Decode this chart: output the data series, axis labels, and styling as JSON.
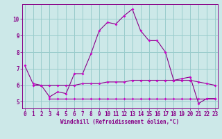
{
  "xlabel": "Windchill (Refroidissement éolien,°C)",
  "bg_color": "#cce8e8",
  "grid_color": "#99cccc",
  "line_color": "#880088",
  "marker_color": "#cc00cc",
  "x_ticks": [
    0,
    1,
    2,
    3,
    4,
    5,
    6,
    7,
    8,
    9,
    10,
    11,
    12,
    13,
    14,
    15,
    16,
    17,
    18,
    19,
    20,
    21,
    22,
    23
  ],
  "y_ticks": [
    5,
    6,
    7,
    8,
    9,
    10
  ],
  "xlim": [
    -0.3,
    23.3
  ],
  "ylim": [
    4.6,
    10.9
  ],
  "line1_x": [
    0,
    1,
    2,
    3,
    4,
    5,
    6,
    7,
    8,
    9,
    10,
    11,
    12,
    13,
    14,
    15,
    16,
    17,
    18,
    19,
    20,
    21,
    22,
    23
  ],
  "line1_y": [
    7.2,
    6.1,
    6.0,
    5.3,
    5.6,
    5.5,
    6.7,
    6.7,
    7.9,
    9.3,
    9.8,
    9.7,
    10.2,
    10.6,
    9.3,
    8.7,
    8.7,
    8.0,
    6.3,
    6.4,
    6.5,
    4.9,
    5.2,
    5.2
  ],
  "line2_x": [
    1,
    2,
    3,
    4,
    5,
    6,
    7,
    8,
    9,
    10,
    11,
    12,
    13,
    14,
    15,
    16,
    17,
    18,
    19,
    20,
    21,
    22,
    23
  ],
  "line2_y": [
    6.0,
    6.0,
    6.0,
    6.0,
    6.0,
    6.0,
    6.1,
    6.1,
    6.1,
    6.2,
    6.2,
    6.2,
    6.3,
    6.3,
    6.3,
    6.3,
    6.3,
    6.3,
    6.3,
    6.3,
    6.2,
    6.1,
    6.0
  ],
  "line3_x": [
    3,
    4,
    5,
    6,
    7,
    8,
    9,
    10,
    11,
    12,
    13,
    14,
    15,
    16,
    17,
    18,
    19,
    20,
    21,
    22,
    23
  ],
  "line3_y": [
    5.2,
    5.2,
    5.2,
    5.2,
    5.2,
    5.2,
    5.2,
    5.2,
    5.2,
    5.2,
    5.2,
    5.2,
    5.2,
    5.2,
    5.2,
    5.2,
    5.2,
    5.2,
    5.2,
    5.2,
    5.2
  ],
  "tick_fontsize": 5.5,
  "label_fontsize": 5.5
}
